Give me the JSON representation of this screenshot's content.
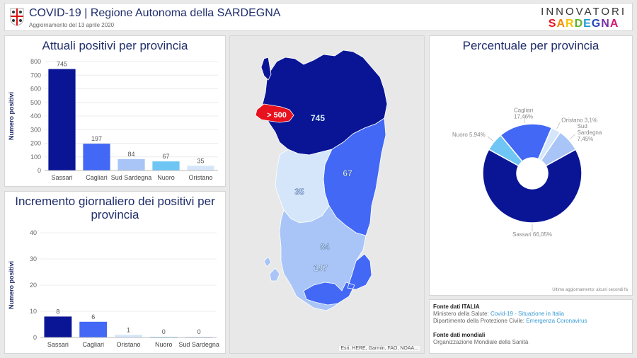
{
  "header": {
    "title": "COVID-19 | Regione Autonoma della SARDEGNA",
    "subtitle": "Aggiornamento del 13 aprile 2020",
    "brand_line1": "INNOVATORI",
    "brand_line2": "SARDEGNA",
    "logo_icon": "sardinia-coat-of-arms-icon"
  },
  "colors": {
    "sassari": "#0a1596",
    "cagliari": "#4268f5",
    "sud_sardegna": "#a9c5f7",
    "nuoro": "#6fc6f4",
    "oristano": "#d6e6fa",
    "highlight": "#e8111e"
  },
  "chart_data": [
    {
      "type": "bar",
      "title": "Attuali positivi per provincia",
      "ylabel": "Numero positivi",
      "xlabel": "",
      "categories": [
        "Sassari",
        "Cagliari",
        "Sud Sardegna",
        "Nuoro",
        "Oristano"
      ],
      "values": [
        745,
        197,
        84,
        67,
        35
      ],
      "ylim": [
        0,
        800
      ],
      "yticks": [
        0,
        100,
        200,
        300,
        400,
        500,
        600,
        700,
        800
      ],
      "grid": true
    },
    {
      "type": "bar",
      "title": "Incremento giornaliero dei positivi per provincia",
      "ylabel": "Numero positivi",
      "xlabel": "",
      "categories": [
        "Sassari",
        "Cagliari",
        "Oristano",
        "Nuoro",
        "Sud Sardegna"
      ],
      "values": [
        8,
        6,
        1,
        0,
        0
      ],
      "ylim": [
        0,
        40
      ],
      "yticks": [
        0,
        10,
        20,
        30,
        40
      ],
      "grid": true
    },
    {
      "type": "pie",
      "title": "Percentuale per provincia",
      "labels": [
        "Sassari 66,05%",
        "Cagliari 17,46%",
        "Sud Sardegna 7,45%",
        "Nuoro 5,94%",
        "Oristano 3,1%"
      ],
      "values": [
        66.05,
        17.46,
        7.45,
        5.94,
        3.1
      ],
      "donut": true
    }
  ],
  "map": {
    "labels": {
      "sassari": "745",
      "nuoro": "67",
      "oristano": "35",
      "sud_sardegna": "84",
      "cagliari": "197",
      "hotspot": "> 500"
    },
    "attribution": "Esri, HERE, Garmin, FAO, NOAA..."
  },
  "pie_footer": "Ultimo aggiornamento: alcuni secondi fa",
  "sources": {
    "italy_heading": "Fonte dati ITALIA",
    "italy_line1_prefix": "Ministero della Salute:",
    "italy_line1_link": "Covid-19 - Situazione in Italia",
    "italy_line2_prefix": "Dipartimento della Protezione Civile:",
    "italy_line2_link": "Emergenza Coronavirus",
    "world_heading": "Fonte dati mondiali",
    "world_line1": "Organizzazione Mondiale della Sanità"
  }
}
